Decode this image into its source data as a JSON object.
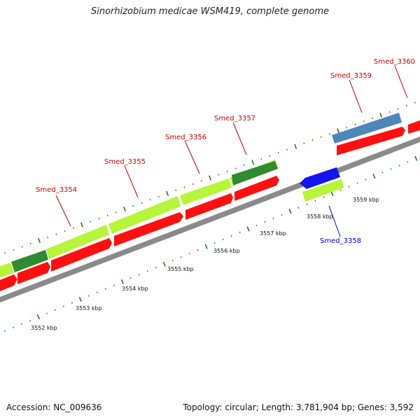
{
  "title": "Sinorhizobium medicae WSM419, complete genome",
  "footer": {
    "accession": "Accession: NC_009636",
    "summary": "Topology: circular; Length: 3,781,904 bp; Genes: 3,592"
  },
  "colors": {
    "backbone": "#8a8a8a",
    "cds_red": "#ff1010",
    "gene_lightgreen": "#b6f53a",
    "gene_darkgreen": "#2e8b2e",
    "gene_blue": "#1414ee",
    "gene_steelblue": "#4f86b8",
    "label_red": "#cc0000",
    "label_blue": "#0000cc",
    "tick_green": "#1f7a1f"
  },
  "scale": {
    "tick_labels": [
      {
        "kbp": 3552,
        "text": "3552 kbp"
      },
      {
        "kbp": 3553,
        "text": "3553 kbp"
      },
      {
        "kbp": 3554,
        "text": "3554 kbp"
      },
      {
        "kbp": 3555,
        "text": "3555 kbp"
      },
      {
        "kbp": 3556,
        "text": "3556 kbp"
      },
      {
        "kbp": 3557,
        "text": "3557 kbp"
      },
      {
        "kbp": 3558,
        "text": "3558 kbp"
      },
      {
        "kbp": 3559,
        "text": "3559 kbp"
      }
    ]
  },
  "gene_labels": [
    {
      "name": "Smed_3354",
      "color": "label_red"
    },
    {
      "name": "Smed_3355",
      "color": "label_red"
    },
    {
      "name": "Smed_3356",
      "color": "label_red"
    },
    {
      "name": "Smed_3357",
      "color": "label_red"
    },
    {
      "name": "Smed_3358",
      "color": "label_blue"
    },
    {
      "name": "Smed_3359",
      "color": "label_red"
    },
    {
      "name": "Smed_3360",
      "color": "label_red"
    }
  ]
}
